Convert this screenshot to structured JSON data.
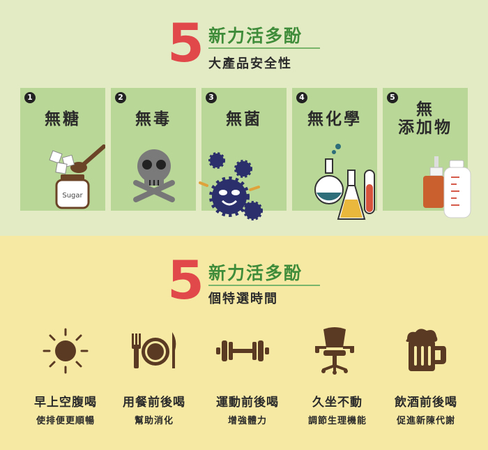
{
  "section1": {
    "number": "5",
    "title": "新力活多酚",
    "subtitle": "大產品安全性",
    "cards": [
      {
        "num": "1",
        "label": "無糖",
        "icon": "sugar-jar-icon",
        "jar_text": "Sugar"
      },
      {
        "num": "2",
        "label": "無毒",
        "icon": "skull-crossbones-icon"
      },
      {
        "num": "3",
        "label": "無菌",
        "icon": "germs-icon"
      },
      {
        "num": "4",
        "label": "無化學",
        "icon": "lab-flasks-icon"
      },
      {
        "num": "5",
        "label_line1": "無",
        "label_line2": "添加物",
        "icon": "bottles-icon"
      }
    ]
  },
  "section2": {
    "number": "5",
    "title": "新力活多酚",
    "subtitle": "個特選時間",
    "times": [
      {
        "icon": "sun-icon",
        "main": "早上空腹喝",
        "sub": "使排便更順暢"
      },
      {
        "icon": "dining-plate-icon",
        "main": "用餐前後喝",
        "sub": "幫助消化"
      },
      {
        "icon": "dumbbell-icon",
        "main": "運動前後喝",
        "sub": "增強體力"
      },
      {
        "icon": "office-chair-icon",
        "main": "久坐不動",
        "sub": "調節生理機能"
      },
      {
        "icon": "beer-mug-icon",
        "main": "飲酒前後喝",
        "sub": "促進新陳代謝"
      }
    ]
  },
  "colors": {
    "top_bg": "#e3ebc4",
    "bottom_bg": "#f6e9a4",
    "card_bg": "#b9d796",
    "accent_red": "#e0484a",
    "accent_green": "#3f8c3a",
    "icon_brown": "#5a3a22"
  }
}
